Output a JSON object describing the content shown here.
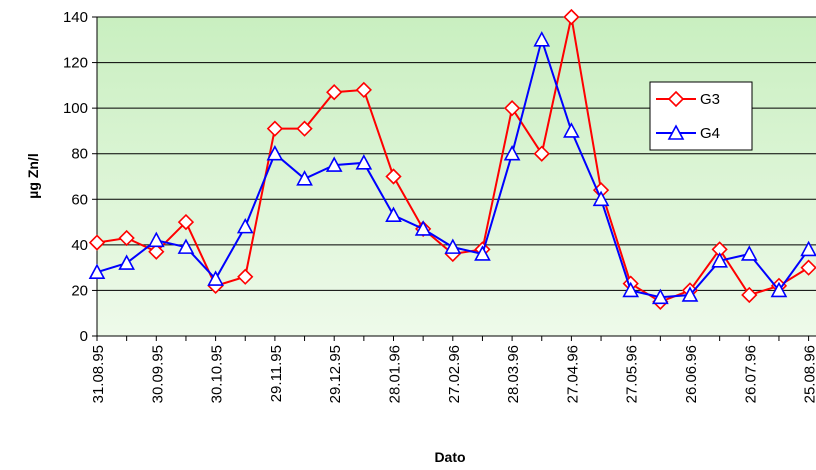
{
  "chart_data": {
    "type": "line",
    "y_label": "µg Zn/l",
    "x_label": "Dato",
    "categories": [
      "31.08.95",
      null,
      "30.09.95",
      null,
      "30.10.95",
      null,
      "29.11.95",
      null,
      "29.12.95",
      null,
      "28.01.96",
      null,
      "27.02.96",
      null,
      "28.03.96",
      null,
      "27.04.96",
      null,
      "27.05.96",
      null,
      "26.06.96",
      null,
      "26.07.96",
      null,
      "25.08.96"
    ],
    "series": [
      {
        "name": "G3",
        "color": "#ff0000",
        "marker": "diamond",
        "values": [
          41,
          43,
          37,
          50,
          22,
          26,
          91,
          91,
          107,
          108,
          70,
          47,
          36,
          38,
          100,
          80,
          140,
          64,
          23,
          15,
          20,
          38,
          18,
          22,
          30
        ]
      },
      {
        "name": "G4",
        "color": "#0000ff",
        "marker": "triangle",
        "values": [
          28,
          32,
          42,
          39,
          25,
          48,
          80,
          69,
          75,
          76,
          53,
          47,
          39,
          36,
          80,
          130,
          90,
          60,
          20,
          17,
          18,
          33,
          36,
          20,
          38
        ]
      }
    ],
    "ylim": [
      0,
      140
    ],
    "yticks": [
      0,
      20,
      40,
      60,
      80,
      100,
      120,
      140
    ],
    "grid": true,
    "legend": "right"
  }
}
